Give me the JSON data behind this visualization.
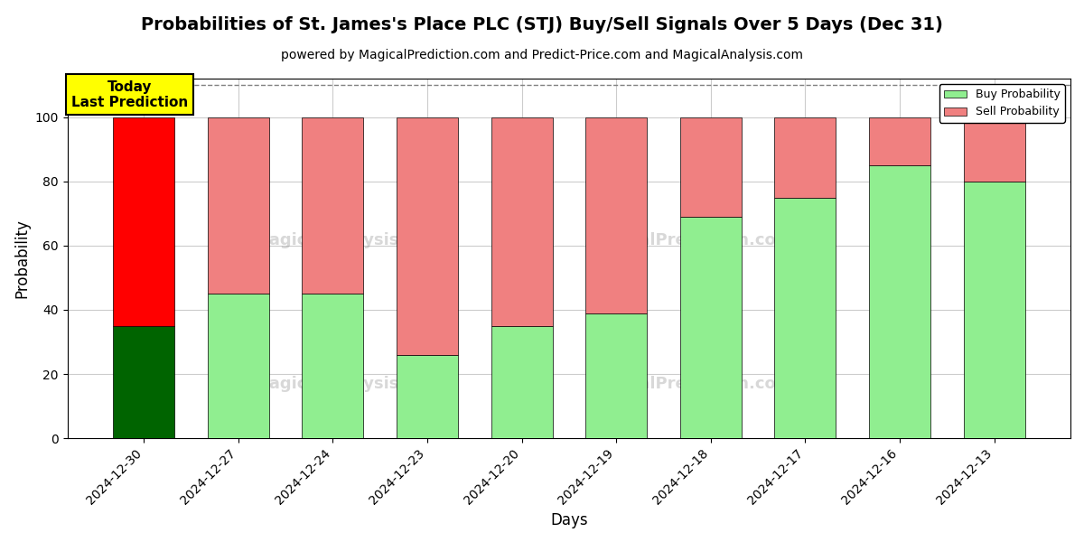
{
  "title": "Probabilities of St. James's Place PLC (STJ) Buy/Sell Signals Over 5 Days (Dec 31)",
  "subtitle": "powered by MagicalPrediction.com and Predict-Price.com and MagicalAnalysis.com",
  "xlabel": "Days",
  "ylabel": "Probability",
  "categories": [
    "2024-12-30",
    "2024-12-27",
    "2024-12-24",
    "2024-12-23",
    "2024-12-20",
    "2024-12-19",
    "2024-12-18",
    "2024-12-17",
    "2024-12-16",
    "2024-12-13"
  ],
  "buy_values": [
    35,
    45,
    45,
    26,
    35,
    39,
    69,
    75,
    85,
    80
  ],
  "sell_values": [
    65,
    55,
    55,
    74,
    65,
    61,
    31,
    25,
    15,
    20
  ],
  "buy_colors": [
    "#006400",
    "#90EE90",
    "#90EE90",
    "#90EE90",
    "#90EE90",
    "#90EE90",
    "#90EE90",
    "#90EE90",
    "#90EE90",
    "#90EE90"
  ],
  "sell_colors": [
    "#FF0000",
    "#F08080",
    "#F08080",
    "#F08080",
    "#F08080",
    "#F08080",
    "#F08080",
    "#F08080",
    "#F08080",
    "#F08080"
  ],
  "legend_buy_color": "#90EE90",
  "legend_sell_color": "#F08080",
  "ylim": [
    0,
    112
  ],
  "dashed_line_y": 110,
  "annotation_text": "Today\nLast Prediction",
  "annotation_bg_color": "#FFFF00",
  "bar_width": 0.65,
  "grid_color": "#CCCCCC",
  "title_fontsize": 14,
  "subtitle_fontsize": 10,
  "axis_label_fontsize": 12,
  "tick_fontsize": 10
}
